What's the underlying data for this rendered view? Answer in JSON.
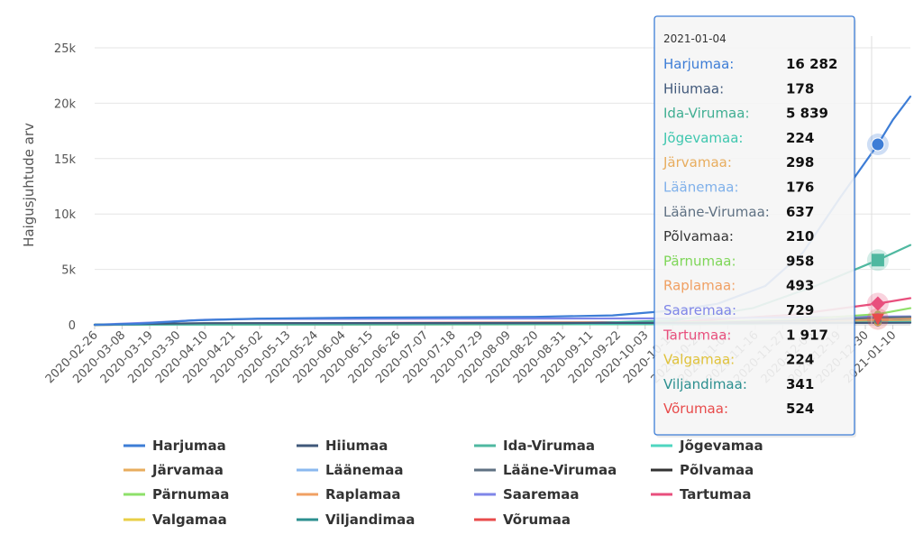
{
  "chart_data": {
    "type": "line",
    "ylabel": "Haigusjuhtude arv",
    "y_ticks": [
      {
        "value": 0,
        "label": "0"
      },
      {
        "value": 5000,
        "label": "5k"
      },
      {
        "value": 10000,
        "label": "10k"
      },
      {
        "value": 15000,
        "label": "15k"
      },
      {
        "value": 20000,
        "label": "20k"
      },
      {
        "value": 25000,
        "label": "25k"
      }
    ],
    "ylim": [
      0,
      25000
    ],
    "xlim": [
      "2020-02-26",
      "2021-01-17"
    ],
    "x_tick_labels": [
      "2020-02-26",
      "2020-03-08",
      "2020-03-19",
      "2020-03-30",
      "2020-04-10",
      "2020-04-21",
      "2020-05-02",
      "2020-05-13",
      "2020-05-24",
      "2020-06-04",
      "2020-06-15",
      "2020-06-26",
      "2020-07-07",
      "2020-07-18",
      "2020-07-29",
      "2020-08-09",
      "2020-08-20",
      "2020-08-31",
      "2020-09-11",
      "2020-09-22",
      "2020-10-03",
      "2020-10-14",
      "2020-10-25",
      "2020-11-05",
      "2020-11-16",
      "2020-11-27",
      "2020-12-08",
      "2020-12-19",
      "2020-12-30",
      "2021-01-10"
    ],
    "grid": true,
    "legend_position": "bottom",
    "series": [
      {
        "name": "Harjumaa",
        "color": "#3d7dd6",
        "marker": "circle",
        "points": [
          [
            "2020-02-26",
            0
          ],
          [
            "2020-03-15",
            100
          ],
          [
            "2020-04-05",
            400
          ],
          [
            "2020-05-01",
            550
          ],
          [
            "2020-06-15",
            650
          ],
          [
            "2020-08-20",
            720
          ],
          [
            "2020-09-20",
            850
          ],
          [
            "2020-10-15",
            1300
          ],
          [
            "2020-11-01",
            1900
          ],
          [
            "2020-11-20",
            3500
          ],
          [
            "2020-12-05",
            6500
          ],
          [
            "2020-12-20",
            11500
          ],
          [
            "2021-01-04",
            16282
          ],
          [
            "2021-01-10",
            18500
          ],
          [
            "2021-01-17",
            20600
          ]
        ]
      },
      {
        "name": "Hiiumaa",
        "color": "#40587a",
        "marker": "none",
        "points": [
          [
            "2020-02-26",
            0
          ],
          [
            "2020-03-20",
            90
          ],
          [
            "2020-04-10",
            150
          ],
          [
            "2020-11-01",
            160
          ],
          [
            "2021-01-04",
            178
          ],
          [
            "2021-01-17",
            185
          ]
        ]
      },
      {
        "name": "Ida-Virumaa",
        "color": "#4fb8a0",
        "marker": "none",
        "points": [
          [
            "2020-02-26",
            0
          ],
          [
            "2020-04-01",
            60
          ],
          [
            "2020-09-01",
            100
          ],
          [
            "2020-10-15",
            400
          ],
          [
            "2020-11-15",
            1500
          ],
          [
            "2020-12-10",
            3500
          ],
          [
            "2021-01-04",
            5839
          ],
          [
            "2021-01-17",
            7200
          ]
        ]
      },
      {
        "name": "Jõgevamaa",
        "color": "#4fd6c0",
        "marker": "none",
        "points": [
          [
            "2020-02-26",
            0
          ],
          [
            "2020-04-01",
            20
          ],
          [
            "2020-10-15",
            60
          ],
          [
            "2021-01-04",
            224
          ],
          [
            "2021-01-17",
            260
          ]
        ]
      },
      {
        "name": "Järvamaa",
        "color": "#e8ad5e",
        "marker": "none",
        "points": [
          [
            "2020-02-26",
            0
          ],
          [
            "2020-04-01",
            40
          ],
          [
            "2020-10-15",
            80
          ],
          [
            "2021-01-04",
            298
          ],
          [
            "2021-01-17",
            330
          ]
        ]
      },
      {
        "name": "Läänemaa",
        "color": "#8ab8ef",
        "marker": "none",
        "points": [
          [
            "2020-02-26",
            0
          ],
          [
            "2020-04-01",
            40
          ],
          [
            "2020-10-15",
            70
          ],
          [
            "2021-01-04",
            176
          ],
          [
            "2021-01-17",
            200
          ]
        ]
      },
      {
        "name": "Lääne-Virumaa",
        "color": "#5f7183",
        "marker": "none",
        "points": [
          [
            "2020-02-26",
            0
          ],
          [
            "2020-04-01",
            50
          ],
          [
            "2020-10-15",
            120
          ],
          [
            "2020-12-01",
            350
          ],
          [
            "2021-01-04",
            637
          ],
          [
            "2021-01-17",
            700
          ]
        ]
      },
      {
        "name": "Põlvamaa",
        "color": "#333333",
        "marker": "none",
        "points": [
          [
            "2020-02-26",
            0
          ],
          [
            "2020-04-01",
            30
          ],
          [
            "2020-10-15",
            60
          ],
          [
            "2021-01-04",
            210
          ],
          [
            "2021-01-17",
            240
          ]
        ]
      },
      {
        "name": "Pärnumaa",
        "color": "#8ee06a",
        "marker": "none",
        "points": [
          [
            "2020-02-26",
            0
          ],
          [
            "2020-03-20",
            60
          ],
          [
            "2020-04-15",
            120
          ],
          [
            "2020-10-15",
            200
          ],
          [
            "2020-12-01",
            450
          ],
          [
            "2021-01-04",
            958
          ],
          [
            "2021-01-17",
            1500
          ]
        ]
      },
      {
        "name": "Raplamaa",
        "color": "#f0a063",
        "marker": "none",
        "points": [
          [
            "2020-02-26",
            0
          ],
          [
            "2020-04-01",
            60
          ],
          [
            "2020-10-15",
            150
          ],
          [
            "2021-01-04",
            493
          ],
          [
            "2021-01-17",
            550
          ]
        ]
      },
      {
        "name": "Saaremaa",
        "color": "#7f86e8",
        "marker": "none",
        "points": [
          [
            "2020-02-26",
            0
          ],
          [
            "2020-03-20",
            200
          ],
          [
            "2020-04-10",
            450
          ],
          [
            "2020-05-01",
            530
          ],
          [
            "2020-10-15",
            580
          ],
          [
            "2021-01-04",
            729
          ],
          [
            "2021-01-17",
            760
          ]
        ]
      },
      {
        "name": "Tartumaa",
        "color": "#e84f7d",
        "marker": "diamond",
        "points": [
          [
            "2020-02-26",
            0
          ],
          [
            "2020-03-20",
            60
          ],
          [
            "2020-04-15",
            120
          ],
          [
            "2020-10-15",
            250
          ],
          [
            "2020-12-01",
            900
          ],
          [
            "2021-01-04",
            1917
          ],
          [
            "2021-01-17",
            2400
          ]
        ]
      },
      {
        "name": "Valgamaa",
        "color": "#e8cf47",
        "marker": "none",
        "points": [
          [
            "2020-02-26",
            0
          ],
          [
            "2020-04-01",
            10
          ],
          [
            "2020-10-15",
            40
          ],
          [
            "2021-01-04",
            224
          ],
          [
            "2021-01-17",
            250
          ]
        ]
      },
      {
        "name": "Viljandimaa",
        "color": "#2b8f8f",
        "marker": "none",
        "points": [
          [
            "2020-02-26",
            0
          ],
          [
            "2020-04-01",
            30
          ],
          [
            "2020-10-15",
            80
          ],
          [
            "2021-01-04",
            341
          ],
          [
            "2021-01-17",
            380
          ]
        ]
      },
      {
        "name": "Võrumaa",
        "color": "#e84b4b",
        "marker": "triangle-down",
        "points": [
          [
            "2020-02-26",
            0
          ],
          [
            "2020-04-01",
            20
          ],
          [
            "2020-10-15",
            60
          ],
          [
            "2021-01-04",
            524
          ],
          [
            "2021-01-17",
            600
          ]
        ]
      }
    ],
    "tooltip": {
      "date": "2021-01-04",
      "rows": [
        {
          "name": "Harjumaa:",
          "value": "16 282",
          "color": "#3d7dd6"
        },
        {
          "name": "Hiiumaa:",
          "value": "178",
          "color": "#40587a"
        },
        {
          "name": "Ida-Virumaa:",
          "value": "5 839",
          "color": "#3fae92"
        },
        {
          "name": "Jõgevamaa:",
          "value": "224",
          "color": "#3fc7af"
        },
        {
          "name": "Järvamaa:",
          "value": "298",
          "color": "#e8ad5e"
        },
        {
          "name": "Läänemaa:",
          "value": "176",
          "color": "#7fb0ea"
        },
        {
          "name": "Lääne-Virumaa:",
          "value": "637",
          "color": "#5f7183"
        },
        {
          "name": "Põlvamaa:",
          "value": "210",
          "color": "#333333"
        },
        {
          "name": "Pärnumaa:",
          "value": "958",
          "color": "#7ed658"
        },
        {
          "name": "Raplamaa:",
          "value": "493",
          "color": "#f0a063"
        },
        {
          "name": "Saaremaa:",
          "value": "729",
          "color": "#7f86e8"
        },
        {
          "name": "Tartumaa:",
          "value": "1 917",
          "color": "#e84f7d"
        },
        {
          "name": "Valgamaa:",
          "value": "224",
          "color": "#e0c23a"
        },
        {
          "name": "Viljandimaa:",
          "value": "341",
          "color": "#2b8f8f"
        },
        {
          "name": "Võrumaa:",
          "value": "524",
          "color": "#e84b4b"
        }
      ]
    }
  }
}
